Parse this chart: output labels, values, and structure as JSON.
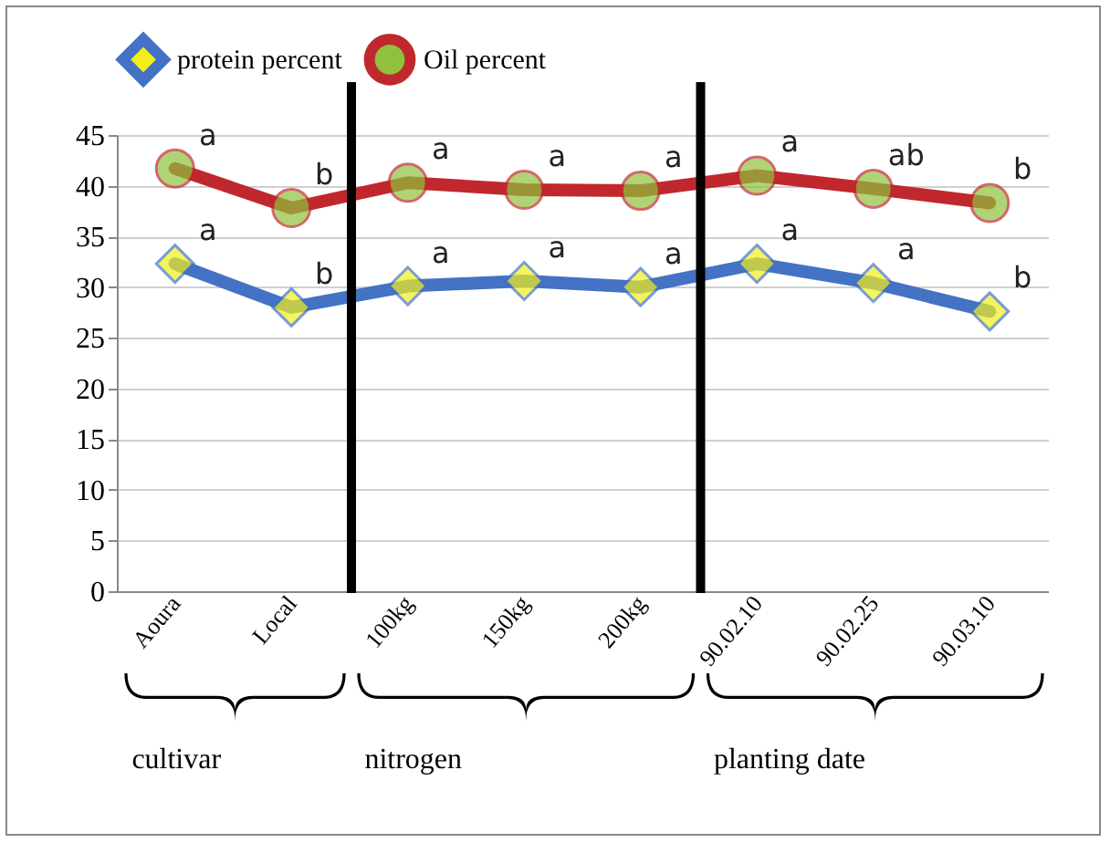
{
  "chart_data": {
    "type": "line",
    "categories": [
      "Aoura",
      "Local",
      "100kg",
      "150kg",
      "200kg",
      "90.02.10",
      "90.02.25",
      "90.03.10"
    ],
    "series": [
      {
        "name": "protein percent",
        "color": "#4472c4",
        "marker": "diamond",
        "values": [
          32.3,
          28.0,
          30.1,
          30.6,
          30.0,
          32.3,
          30.4,
          27.6
        ]
      },
      {
        "name": "Oil percent",
        "color": "#c0282d",
        "marker": "circle",
        "values": [
          41.7,
          37.8,
          40.3,
          39.6,
          39.5,
          41.0,
          39.7,
          38.3
        ]
      }
    ],
    "ylim": [
      0,
      45
    ],
    "yticks": [
      0,
      5,
      10,
      15,
      20,
      25,
      30,
      35,
      40,
      45
    ],
    "grid": "y",
    "legend": "top",
    "annotations": [
      {
        "text": "a",
        "x": "Aoura",
        "y": 32.3
      },
      {
        "text": "b",
        "x": "Local",
        "y": 28.0
      },
      {
        "text": "a",
        "x": "100kg",
        "y": 30.1
      },
      {
        "text": "a",
        "x": "150kg",
        "y": 30.6
      },
      {
        "text": "a",
        "x": "200kg",
        "y": 30.0
      },
      {
        "text": "a",
        "x": "90.02.10",
        "y": 32.3
      },
      {
        "text": "a",
        "x": "90.02.25",
        "y": 30.4
      },
      {
        "text": "b",
        "x": "90.03.10",
        "y": 27.6
      },
      {
        "text": "a",
        "x": "Aoura",
        "y": 41.7
      },
      {
        "text": "b",
        "x": "Local",
        "y": 37.8
      },
      {
        "text": "a",
        "x": "100kg",
        "y": 40.3
      },
      {
        "text": "a",
        "x": "150kg",
        "y": 39.6
      },
      {
        "text": "a",
        "x": "200kg",
        "y": 39.5
      },
      {
        "text": "a",
        "x": "90.02.10",
        "y": 41.0
      },
      {
        "text": "ab",
        "x": "90.02.25",
        "y": 39.7
      },
      {
        "text": "b",
        "x": "90.03.10",
        "y": 38.3
      },
      "cultivar",
      "nitrogen",
      "planting date"
    ]
  }
}
